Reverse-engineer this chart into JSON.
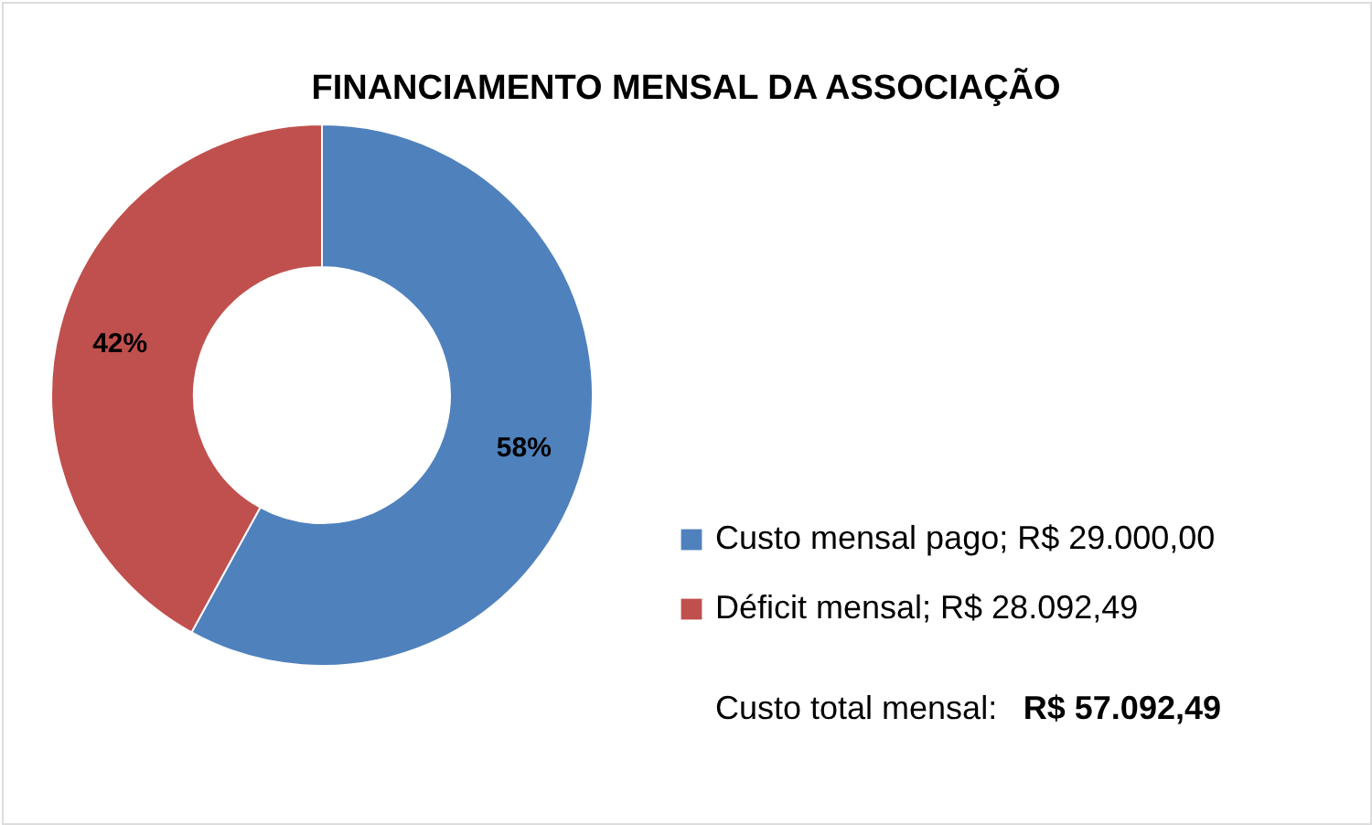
{
  "chart_data": {
    "type": "donut",
    "title": "FINANCIAMENTO MENSAL DA ASSOCIAÇÃO",
    "categories": [
      "Custo mensal pago; R$ 29.000,00",
      "Déficit mensal; R$ 28.092,49"
    ],
    "values": [
      58,
      42
    ],
    "colors": [
      "#4f81bd",
      "#c0504d"
    ],
    "value_labels": [
      "58%",
      "42%"
    ],
    "legend": "right",
    "annotations": [
      "Custo total mensal:",
      "R$ 57.092,49"
    ]
  }
}
